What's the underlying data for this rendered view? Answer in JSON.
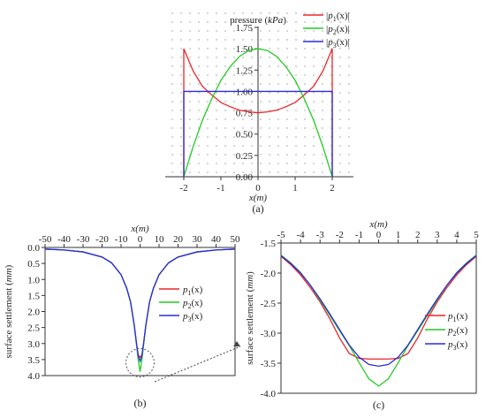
{
  "chart_data": [
    {
      "panel_label": "(a)",
      "type": "line",
      "ylabel": "pressure (kPa)",
      "xlabel": "x(m)",
      "xlim": [
        -2.5,
        2.5
      ],
      "ylim": [
        0.0,
        1.75
      ],
      "xticks": [
        "-2",
        "-1",
        "0",
        "1",
        "2"
      ],
      "yticks": [
        "0.00",
        "0.25",
        "0.50",
        "0.75",
        "1.00",
        "1.25",
        "1.50",
        "1.75"
      ],
      "legend_position": "top-right",
      "grid": "dotted",
      "series": [
        {
          "name": "|p1(x)|",
          "color": "#e8262a",
          "x": [
            -2,
            -2,
            -1.75,
            -1.5,
            -1.25,
            -1,
            -0.75,
            -0.5,
            -0.25,
            0,
            0.25,
            0.5,
            0.75,
            1,
            1.25,
            1.5,
            1.75,
            2,
            2
          ],
          "y": [
            0,
            1.5,
            1.24,
            1.06,
            0.96,
            0.87,
            0.82,
            0.78,
            0.76,
            0.75,
            0.76,
            0.78,
            0.82,
            0.87,
            0.96,
            1.06,
            1.24,
            1.5,
            0
          ]
        },
        {
          "name": "|p2(x)|",
          "color": "#22cc22",
          "x": [
            -2,
            -1.75,
            -1.5,
            -1.25,
            -1,
            -0.75,
            -0.5,
            -0.25,
            0,
            0.25,
            0.5,
            0.75,
            1,
            1.25,
            1.5,
            1.75,
            2
          ],
          "y": [
            0,
            0.35,
            0.66,
            0.91,
            1.13,
            1.29,
            1.41,
            1.48,
            1.5,
            1.48,
            1.41,
            1.29,
            1.13,
            0.91,
            0.66,
            0.35,
            0
          ]
        },
        {
          "name": "|p3(x)|",
          "color": "#2a2ae0",
          "x": [
            -2,
            -2,
            2,
            2
          ],
          "y": [
            0,
            1.0,
            1.0,
            0
          ]
        }
      ]
    },
    {
      "panel_label": "(b)",
      "type": "line",
      "xlabel": "x(m)",
      "ylabel": "surface settlement (mm)",
      "xlim": [
        -50,
        50
      ],
      "ylim": [
        0.0,
        4.0
      ],
      "y_inverted": true,
      "xticks": [
        "-50",
        "-40",
        "-30",
        "-20",
        "-10",
        "0",
        "10",
        "20",
        "30",
        "40",
        "50"
      ],
      "yticks": [
        "0.0",
        "0.5",
        "1.0",
        "1.5",
        "2.0",
        "2.5",
        "3.0",
        "3.5",
        "4.0"
      ],
      "legend_position": "right",
      "series": [
        {
          "name": "p1(x)",
          "color": "#e8262a",
          "x": [
            -50,
            -40,
            -30,
            -20,
            -15,
            -10,
            -7,
            -5,
            -3,
            -2,
            -1,
            0,
            1,
            2,
            3,
            5,
            7,
            10,
            15,
            20,
            30,
            40,
            50
          ],
          "y": [
            0.05,
            0.08,
            0.14,
            0.3,
            0.48,
            0.85,
            1.28,
            1.7,
            2.45,
            2.95,
            3.35,
            3.43,
            3.35,
            2.95,
            2.45,
            1.7,
            1.28,
            0.85,
            0.48,
            0.3,
            0.14,
            0.08,
            0.05
          ]
        },
        {
          "name": "p2(x)",
          "color": "#22cc22",
          "x": [
            -50,
            -40,
            -30,
            -20,
            -15,
            -10,
            -7,
            -5,
            -3,
            -2,
            -1,
            0,
            1,
            2,
            3,
            5,
            7,
            10,
            15,
            20,
            30,
            40,
            50
          ],
          "y": [
            0.05,
            0.08,
            0.14,
            0.3,
            0.48,
            0.85,
            1.28,
            1.7,
            2.45,
            2.96,
            3.5,
            3.88,
            3.5,
            2.96,
            2.45,
            1.7,
            1.28,
            0.85,
            0.48,
            0.3,
            0.14,
            0.08,
            0.05
          ]
        },
        {
          "name": "p3(x)",
          "color": "#2a2ae0",
          "x": [
            -50,
            -40,
            -30,
            -20,
            -15,
            -10,
            -7,
            -5,
            -3,
            -2,
            -1,
            0,
            1,
            2,
            3,
            5,
            7,
            10,
            15,
            20,
            30,
            40,
            50
          ],
          "y": [
            0.05,
            0.08,
            0.14,
            0.3,
            0.48,
            0.85,
            1.28,
            1.7,
            2.45,
            2.93,
            3.38,
            3.55,
            3.38,
            2.93,
            2.45,
            1.7,
            1.28,
            0.85,
            0.48,
            0.3,
            0.14,
            0.08,
            0.05
          ]
        }
      ]
    },
    {
      "panel_label": "(c)",
      "type": "line",
      "xlabel": "x(m)",
      "ylabel": "surface settlement (mm)",
      "xlim": [
        -5,
        5
      ],
      "ylim": [
        1.5,
        4.0
      ],
      "y_inverted": true,
      "xticks": [
        "-5",
        "-4",
        "-3",
        "-2",
        "-1",
        "0",
        "1",
        "2",
        "3",
        "4",
        "5"
      ],
      "yticks": [
        "-1.5",
        "-2.0",
        "-2.5",
        "-3.0",
        "-3.5",
        "-4.0"
      ],
      "legend_position": "right",
      "series": [
        {
          "name": "p1(x)",
          "color": "#e8262a",
          "x": [
            -5,
            -4.5,
            -4,
            -3.5,
            -3,
            -2.5,
            -2,
            -1.5,
            -1,
            -0.5,
            0,
            0.5,
            1,
            1.5,
            2,
            2.5,
            3,
            3.5,
            4,
            4.5,
            5
          ],
          "y": [
            1.72,
            1.86,
            2.03,
            2.24,
            2.48,
            2.76,
            3.08,
            3.34,
            3.42,
            3.43,
            3.43,
            3.43,
            3.42,
            3.34,
            3.08,
            2.76,
            2.48,
            2.24,
            2.03,
            1.86,
            1.72
          ]
        },
        {
          "name": "p2(x)",
          "color": "#22cc22",
          "x": [
            -5,
            -4.5,
            -4,
            -3.5,
            -3,
            -2.5,
            -2,
            -1.5,
            -1,
            -0.5,
            0,
            0.5,
            1,
            1.5,
            2,
            2.5,
            3,
            3.5,
            4,
            4.5,
            5
          ],
          "y": [
            1.7,
            1.83,
            1.99,
            2.2,
            2.45,
            2.7,
            2.96,
            3.21,
            3.49,
            3.76,
            3.88,
            3.76,
            3.49,
            3.21,
            2.96,
            2.7,
            2.45,
            2.2,
            1.99,
            1.83,
            1.7
          ]
        },
        {
          "name": "p3(x)",
          "color": "#2a2ae0",
          "x": [
            -5,
            -4.5,
            -4,
            -3.5,
            -3,
            -2.5,
            -2,
            -1.5,
            -1,
            -0.5,
            0,
            0.5,
            1,
            1.5,
            2,
            2.5,
            3,
            3.5,
            4,
            4.5,
            5
          ],
          "y": [
            1.71,
            1.84,
            2.0,
            2.2,
            2.43,
            2.68,
            2.94,
            3.2,
            3.4,
            3.52,
            3.55,
            3.52,
            3.4,
            3.2,
            2.94,
            2.68,
            2.43,
            2.2,
            2.0,
            1.84,
            1.71
          ]
        }
      ]
    }
  ]
}
